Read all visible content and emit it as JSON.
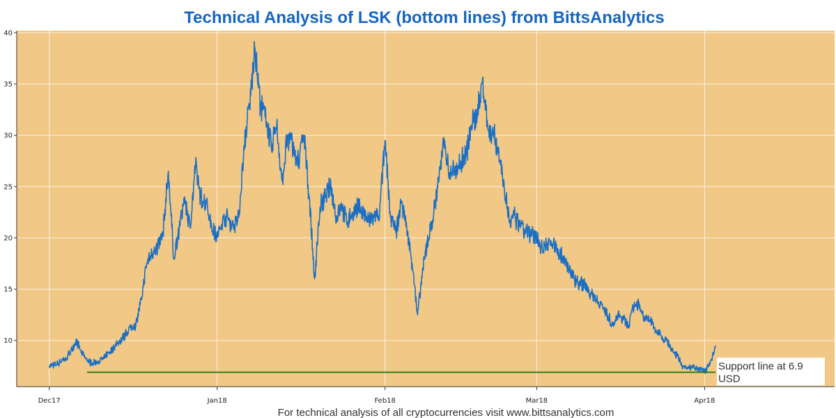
{
  "chart_data": {
    "type": "line",
    "title": "Technical Analysis of LSK (bottom lines) from BittsAnalytics",
    "xlabel": "",
    "ylabel": "",
    "footer": "For technical analysis of all cryptocurrencies visit www.bittsanalytics.com",
    "x_ticks": [
      {
        "date": "2017-12-01",
        "label": "Dec17"
      },
      {
        "date": "2018-01-01",
        "label": "Jan18"
      },
      {
        "date": "2018-02-01",
        "label": "Feb18"
      },
      {
        "date": "2018-03-01",
        "label": "Mar18"
      },
      {
        "date": "2018-04-01",
        "label": "Apr18"
      }
    ],
    "y_ticks": [
      10,
      15,
      20,
      25,
      30,
      35,
      40
    ],
    "xlim": [
      "2017-11-25",
      "2018-04-25"
    ],
    "ylim": [
      5.5,
      40.2
    ],
    "grid": true,
    "plot_background": "#f2c886",
    "series": [
      {
        "name": "",
        "color": "#1a6fc4",
        "points": [
          [
            "2017-12-01",
            7.5
          ],
          [
            "2017-12-02",
            7.6
          ],
          [
            "2017-12-03",
            7.9
          ],
          [
            "2017-12-04",
            8.1
          ],
          [
            "2017-12-05",
            9.0
          ],
          [
            "2017-12-06",
            10.0
          ],
          [
            "2017-12-07",
            8.8
          ],
          [
            "2017-12-08",
            8.0
          ],
          [
            "2017-12-09",
            7.8
          ],
          [
            "2017-12-10",
            8.0
          ],
          [
            "2017-12-11",
            8.2
          ],
          [
            "2017-12-12",
            8.8
          ],
          [
            "2017-12-13",
            9.3
          ],
          [
            "2017-12-14",
            10.0
          ],
          [
            "2017-12-15",
            10.5
          ],
          [
            "2017-12-16",
            11.3
          ],
          [
            "2017-12-17",
            11.5
          ],
          [
            "2017-12-18",
            14.0
          ],
          [
            "2017-12-19",
            17.5
          ],
          [
            "2017-12-20",
            18.5
          ],
          [
            "2017-12-21",
            19.0
          ],
          [
            "2017-12-22",
            20.5
          ],
          [
            "2017-12-23",
            26.5
          ],
          [
            "2017-12-24",
            18.0
          ],
          [
            "2017-12-25",
            21.0
          ],
          [
            "2017-12-26",
            24.0
          ],
          [
            "2017-12-27",
            21.0
          ],
          [
            "2017-12-28",
            27.0
          ],
          [
            "2017-12-29",
            24.0
          ],
          [
            "2017-12-30",
            23.5
          ],
          [
            "2017-12-31",
            21.0
          ],
          [
            "2018-01-01",
            20.0
          ],
          [
            "2018-01-02",
            21.5
          ],
          [
            "2018-01-03",
            22.0
          ],
          [
            "2018-01-04",
            21.0
          ],
          [
            "2018-01-05",
            22.0
          ],
          [
            "2018-01-06",
            29.0
          ],
          [
            "2018-01-07",
            33.0
          ],
          [
            "2018-01-08",
            38.5
          ],
          [
            "2018-01-09",
            33.0
          ],
          [
            "2018-01-10",
            31.5
          ],
          [
            "2018-01-11",
            29.0
          ],
          [
            "2018-01-12",
            31.0
          ],
          [
            "2018-01-13",
            25.5
          ],
          [
            "2018-01-14",
            30.0
          ],
          [
            "2018-01-15",
            29.0
          ],
          [
            "2018-01-16",
            27.5
          ],
          [
            "2018-01-17",
            30.0
          ],
          [
            "2018-01-18",
            24.0
          ],
          [
            "2018-01-19",
            16.0
          ],
          [
            "2018-01-20",
            23.0
          ],
          [
            "2018-01-21",
            24.0
          ],
          [
            "2018-01-22",
            25.0
          ],
          [
            "2018-01-23",
            22.0
          ],
          [
            "2018-01-24",
            23.0
          ],
          [
            "2018-01-25",
            21.5
          ],
          [
            "2018-01-26",
            22.5
          ],
          [
            "2018-01-27",
            23.0
          ],
          [
            "2018-01-28",
            22.5
          ],
          [
            "2018-01-29",
            21.5
          ],
          [
            "2018-01-30",
            22.0
          ],
          [
            "2018-01-31",
            22.5
          ],
          [
            "2018-02-01",
            29.5
          ],
          [
            "2018-02-02",
            22.0
          ],
          [
            "2018-02-03",
            20.5
          ],
          [
            "2018-02-04",
            23.5
          ],
          [
            "2018-02-05",
            21.0
          ],
          [
            "2018-02-06",
            17.5
          ],
          [
            "2018-02-07",
            12.5
          ],
          [
            "2018-02-08",
            17.0
          ],
          [
            "2018-02-09",
            20.0
          ],
          [
            "2018-02-10",
            22.5
          ],
          [
            "2018-02-11",
            26.0
          ],
          [
            "2018-02-12",
            29.5
          ],
          [
            "2018-02-13",
            26.0
          ],
          [
            "2018-02-14",
            27.0
          ],
          [
            "2018-02-15",
            27.5
          ],
          [
            "2018-02-16",
            28.0
          ],
          [
            "2018-02-17",
            31.0
          ],
          [
            "2018-02-18",
            32.0
          ],
          [
            "2018-02-19",
            35.5
          ],
          [
            "2018-02-20",
            30.5
          ],
          [
            "2018-02-21",
            30.0
          ],
          [
            "2018-02-22",
            28.5
          ],
          [
            "2018-02-23",
            25.0
          ],
          [
            "2018-02-24",
            21.5
          ],
          [
            "2018-02-25",
            22.0
          ],
          [
            "2018-02-26",
            21.0
          ],
          [
            "2018-02-27",
            20.5
          ],
          [
            "2018-02-28",
            20.5
          ],
          [
            "2018-03-01",
            20.0
          ],
          [
            "2018-03-02",
            19.0
          ],
          [
            "2018-03-03",
            19.5
          ],
          [
            "2018-03-04",
            19.5
          ],
          [
            "2018-03-05",
            18.5
          ],
          [
            "2018-03-06",
            18.0
          ],
          [
            "2018-03-07",
            17.0
          ],
          [
            "2018-03-08",
            16.0
          ],
          [
            "2018-03-09",
            15.5
          ],
          [
            "2018-03-10",
            15.5
          ],
          [
            "2018-03-11",
            14.5
          ],
          [
            "2018-03-12",
            14.0
          ],
          [
            "2018-03-13",
            13.5
          ],
          [
            "2018-03-14",
            12.5
          ],
          [
            "2018-03-15",
            11.5
          ],
          [
            "2018-03-16",
            12.5
          ],
          [
            "2018-03-17",
            12.0
          ],
          [
            "2018-03-18",
            11.5
          ],
          [
            "2018-03-19",
            13.5
          ],
          [
            "2018-03-20",
            13.5
          ],
          [
            "2018-03-21",
            12.0
          ],
          [
            "2018-03-22",
            12.0
          ],
          [
            "2018-03-23",
            11.0
          ],
          [
            "2018-03-24",
            10.5
          ],
          [
            "2018-03-25",
            10.0
          ],
          [
            "2018-03-26",
            9.0
          ],
          [
            "2018-03-27",
            8.5
          ],
          [
            "2018-03-28",
            7.5
          ],
          [
            "2018-03-29",
            7.3
          ],
          [
            "2018-03-30",
            7.5
          ],
          [
            "2018-03-31",
            7.2
          ],
          [
            "2018-04-01",
            7.0
          ],
          [
            "2018-04-02",
            7.8
          ],
          [
            "2018-04-03",
            9.5
          ]
        ]
      }
    ],
    "support_line": {
      "value": 6.9,
      "x_start": "2017-12-08",
      "x_end": "2018-04-03",
      "color": "#2e7d10",
      "label_line1": "Support line at 6.9",
      "label_line2": "USD"
    }
  }
}
